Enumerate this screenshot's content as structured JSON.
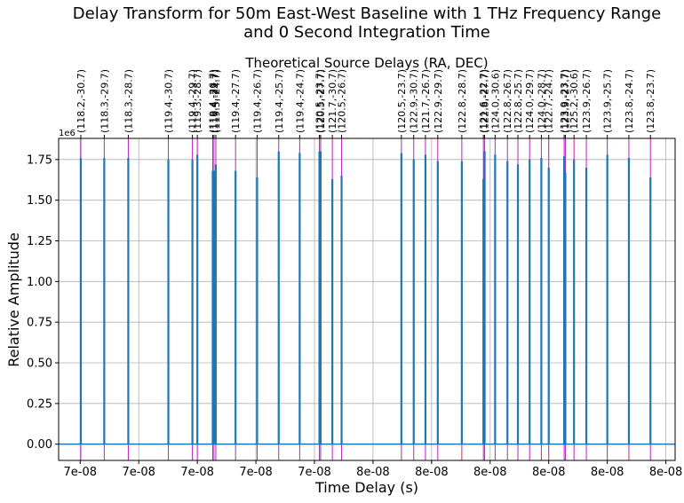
{
  "chart_data": {
    "type": "line",
    "title_line1": "Delay Transform for 50m East-West Baseline with 1 THz Frequency Range",
    "title_line2": "and 0 Second Integration Time",
    "top_axis_title": "Theoretical Source Delays (RA, DEC)",
    "xlabel": "Time Delay (s)",
    "ylabel": "Relative Amplitude",
    "y_multiplier": "1e6",
    "xlim": [
      0,
      1
    ],
    "ylim": [
      -0.1,
      1.88
    ],
    "grid": true,
    "x_tick_positions": [
      0.035,
      0.13,
      0.225,
      0.32,
      0.415,
      0.51,
      0.605,
      0.7,
      0.795,
      0.89,
      0.985
    ],
    "x_tick_labels": [
      "7e-08",
      "7e-08",
      "7e-08",
      "7e-08",
      "7e-08",
      "8e-08",
      "8e-08",
      "8e-08",
      "8e-08",
      "8e-08",
      "8e-08"
    ],
    "y_ticks": [
      0.0,
      0.25,
      0.5,
      0.75,
      1.0,
      1.25,
      1.5,
      1.75
    ],
    "y_tick_labels": [
      "0.00",
      "0.25",
      "0.50",
      "0.75",
      "1.00",
      "1.25",
      "1.50",
      "1.75"
    ],
    "series_color": "#1f77b4",
    "marker_color": "#c020c0",
    "sources": [
      {
        "label": "(118.2,-30.7)",
        "x": 0.036,
        "y": 1.76
      },
      {
        "label": "(118.3,-29.7)",
        "x": 0.074,
        "y": 1.76
      },
      {
        "label": "(118.3,-28.7)",
        "x": 0.113,
        "y": 1.76
      },
      {
        "label": "(119.4,-30.7)",
        "x": 0.178,
        "y": 1.75
      },
      {
        "label": "(119.4,-29.7)",
        "x": 0.217,
        "y": 1.75
      },
      {
        "label": "(119.3,-28.7)",
        "x": 0.225,
        "y": 1.78
      },
      {
        "label": "(119.4,-26.7)",
        "x": 0.25,
        "y": 1.68
      },
      {
        "label": "(119.4,-27.7)",
        "x": 0.252,
        "y": 1.68
      },
      {
        "label": "(119.5,-24.7)",
        "x": 0.255,
        "y": 1.72
      },
      {
        "label": "(119.4,-27.7)",
        "x": 0.287,
        "y": 1.68
      },
      {
        "label": "(119.4,-26.7)",
        "x": 0.322,
        "y": 1.64
      },
      {
        "label": "(119.4,-25.7)",
        "x": 0.357,
        "y": 1.8
      },
      {
        "label": "(119.4,-24.7)",
        "x": 0.391,
        "y": 1.79
      },
      {
        "label": "(120.5,-23.7)",
        "x": 0.423,
        "y": 1.8
      },
      {
        "label": "(120.5,-27.7)",
        "x": 0.425,
        "y": 1.8
      },
      {
        "label": "(121.7,-30.7)",
        "x": 0.444,
        "y": 1.63
      },
      {
        "label": "(120.5,-26.7)",
        "x": 0.459,
        "y": 1.65
      },
      {
        "label": "(120.5,-23.7)",
        "x": 0.556,
        "y": 1.79
      },
      {
        "label": "(122.9,-30.7)",
        "x": 0.576,
        "y": 1.75
      },
      {
        "label": "(121.7,-26.7)",
        "x": 0.595,
        "y": 1.78
      },
      {
        "label": "(122.9,-29.7)",
        "x": 0.615,
        "y": 1.74
      },
      {
        "label": "(122.8,-28.7)",
        "x": 0.654,
        "y": 1.74
      },
      {
        "label": "(121.6,-22.7)",
        "x": 0.689,
        "y": 1.63
      },
      {
        "label": "(122.8,-27.7)",
        "x": 0.691,
        "y": 1.8
      },
      {
        "label": "(124.0,-30.6)",
        "x": 0.708,
        "y": 1.78
      },
      {
        "label": "(122.8,-26.7)",
        "x": 0.728,
        "y": 1.74
      },
      {
        "label": "(122.8,-25.7)",
        "x": 0.745,
        "y": 1.72
      },
      {
        "label": "(124.0,-29.7)",
        "x": 0.764,
        "y": 1.75
      },
      {
        "label": "(124.0,-28.7)",
        "x": 0.783,
        "y": 1.76
      },
      {
        "label": "(122.7,-24.7)",
        "x": 0.795,
        "y": 1.7
      },
      {
        "label": "(123.9,-23.7)",
        "x": 0.82,
        "y": 1.77
      },
      {
        "label": "(123.9,-27.7)",
        "x": 0.822,
        "y": 1.67
      },
      {
        "label": "(125.2,-30.6)",
        "x": 0.836,
        "y": 1.75
      },
      {
        "label": "(123.9,-26.7)",
        "x": 0.856,
        "y": 1.7
      },
      {
        "label": "(123.9,-25.7)",
        "x": 0.89,
        "y": 1.78
      },
      {
        "label": "(123.8,-24.7)",
        "x": 0.925,
        "y": 1.76
      },
      {
        "label": "(123.8,-23.7)",
        "x": 0.96,
        "y": 1.64
      }
    ]
  }
}
